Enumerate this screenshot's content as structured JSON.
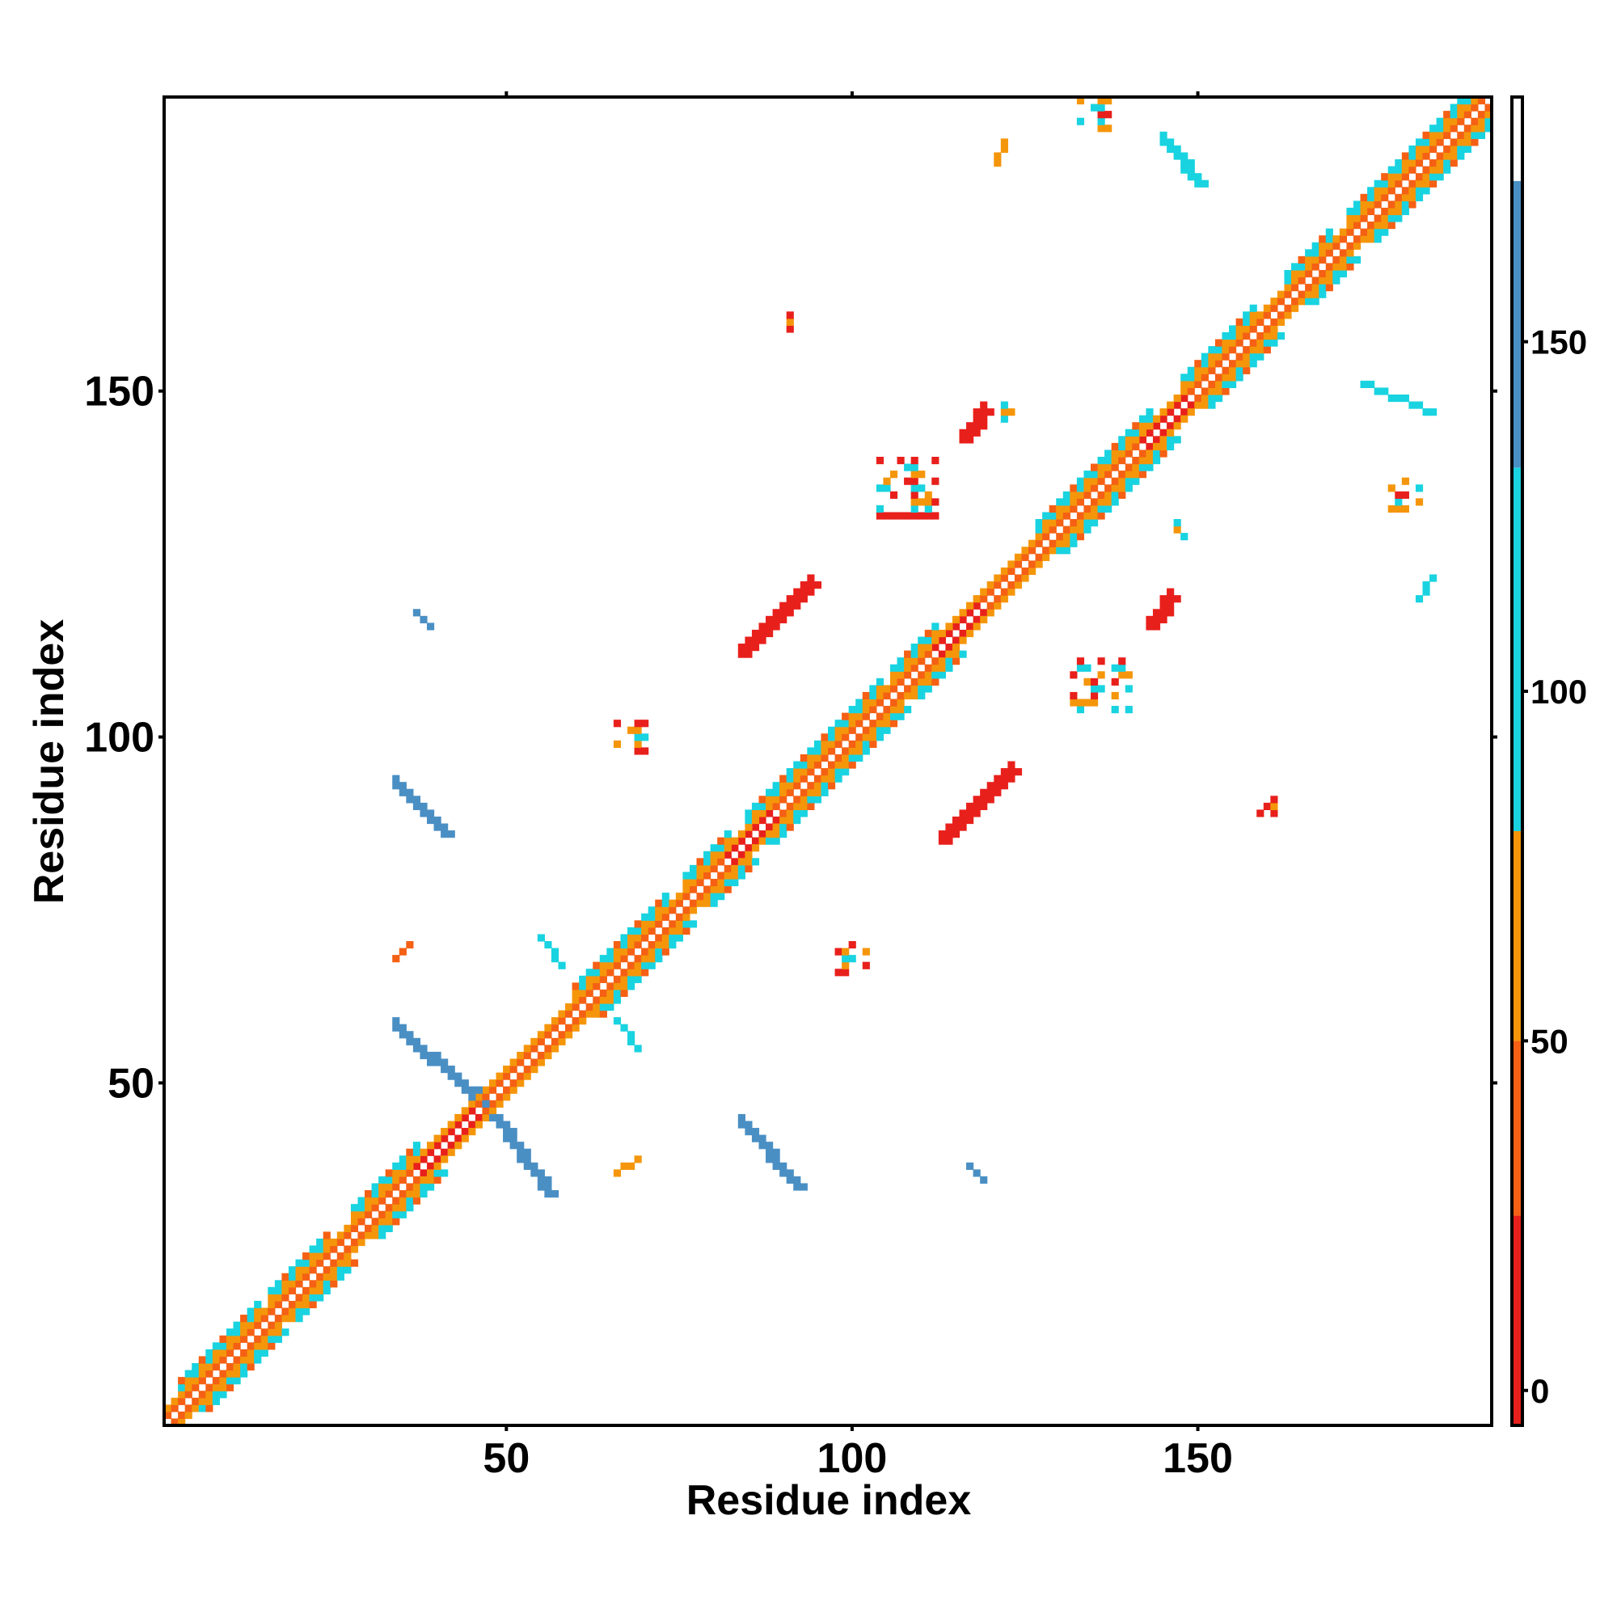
{
  "chart_data": {
    "type": "heatmap",
    "title": "",
    "xlabel": "Residue index",
    "ylabel": "Residue index",
    "xlim": [
      0.5,
      192.5
    ],
    "ylim": [
      0.5,
      192.5
    ],
    "x_ticks": [
      50,
      100,
      150
    ],
    "x_tick_labels": [
      "50",
      "100",
      "150"
    ],
    "y_ticks": [
      50,
      100,
      150
    ],
    "y_tick_labels": [
      "50",
      "100",
      "150"
    ],
    "colorbar": {
      "range": [
        -5,
        185
      ],
      "ticks": [
        0,
        50,
        100,
        150
      ],
      "tick_labels": [
        "0",
        "50",
        "100",
        "150"
      ],
      "bands": [
        {
          "from": -5,
          "to": 25,
          "color": "#e8201c"
        },
        {
          "from": 25,
          "to": 50,
          "color": "#f56014"
        },
        {
          "from": 50,
          "to": 80,
          "color": "#f5960a"
        },
        {
          "from": 80,
          "to": 132,
          "color": "#19d3e0"
        },
        {
          "from": 132,
          "to": 173,
          "color": "#4a8fc4"
        },
        {
          "from": 173,
          "to": 185,
          "color": "#ffffff"
        }
      ]
    },
    "colors": {
      "red": "#e8201c",
      "orange_red": "#f56014",
      "orange": "#f5960a",
      "cyan": "#19d3e0",
      "steel_blue": "#4a8fc4"
    },
    "diagonal_pattern": [
      {
        "offset": 1,
        "level": "orange_red"
      },
      {
        "offset": 2,
        "level": "orange"
      },
      {
        "offset": 3,
        "level": "cyan"
      },
      {
        "offset": 4,
        "level": "cyan"
      }
    ],
    "helix_segments": [
      {
        "start": 3,
        "end": 14
      },
      {
        "start": 16,
        "end": 24
      },
      {
        "start": 28,
        "end": 37
      },
      {
        "start": 60,
        "end": 73
      },
      {
        "start": 76,
        "end": 82
      },
      {
        "start": 85,
        "end": 104
      },
      {
        "start": 106,
        "end": 112
      },
      {
        "start": 127,
        "end": 143
      },
      {
        "start": 148,
        "end": 158
      },
      {
        "start": 163,
        "end": 169
      },
      {
        "start": 172,
        "end": 192
      }
    ],
    "red_diagonal_segments": [
      {
        "start": 37,
        "end": 45
      },
      {
        "start": 82,
        "end": 88
      },
      {
        "start": 112,
        "end": 118
      },
      {
        "start": 142,
        "end": 148
      }
    ],
    "contact_segments": [
      {
        "from": [
          34,
          58
        ],
        "to": [
          45,
          48
        ],
        "level": "steel_blue",
        "width": 2
      },
      {
        "from": [
          46,
          48
        ],
        "to": [
          56,
          34
        ],
        "level": "steel_blue",
        "width": 2
      },
      {
        "from": [
          84,
          44
        ],
        "to": [
          92,
          35
        ],
        "level": "steel_blue",
        "width": 2
      },
      {
        "from": [
          34,
          93
        ],
        "to": [
          41,
          86
        ],
        "level": "steel_blue",
        "width": 2
      },
      {
        "from": [
          55,
          71
        ],
        "to": [
          58,
          67
        ],
        "level": "cyan",
        "width": 1
      },
      {
        "from": [
          66,
          59
        ],
        "to": [
          69,
          55
        ],
        "level": "cyan",
        "width": 1
      },
      {
        "from": [
          113,
          85
        ],
        "to": [
          123,
          95
        ],
        "level": "red",
        "width": 2
      },
      {
        "from": [
          84,
          112
        ],
        "to": [
          94,
          122
        ],
        "level": "red",
        "width": 2
      },
      {
        "from": [
          116,
          143
        ],
        "to": [
          119,
          147
        ],
        "level": "red",
        "width": 2
      },
      {
        "from": [
          143,
          116
        ],
        "to": [
          146,
          120
        ],
        "level": "red",
        "width": 2
      },
      {
        "from": [
          34,
          68
        ],
        "to": [
          36,
          70
        ],
        "level": "orange_red",
        "width": 1
      },
      {
        "from": [
          66,
          37
        ],
        "to": [
          69,
          39
        ],
        "level": "orange",
        "width": 1
      },
      {
        "from": [
          119,
          36
        ],
        "to": [
          117,
          38
        ],
        "level": "steel_blue",
        "width": 1
      },
      {
        "from": [
          37,
          118
        ],
        "to": [
          39,
          116
        ],
        "level": "steel_blue",
        "width": 1
      },
      {
        "from": [
          121,
          183
        ],
        "to": [
          122,
          186
        ],
        "level": "orange",
        "width": 1
      },
      {
        "from": [
          145,
          186
        ],
        "to": [
          150,
          180
        ],
        "level": "cyan",
        "width": 2
      },
      {
        "from": [
          174,
          151
        ],
        "to": [
          184,
          147
        ],
        "level": "cyan",
        "width": 1
      },
      {
        "from": [
          182,
          120
        ],
        "to": [
          184,
          123
        ],
        "level": "cyan",
        "width": 1
      }
    ],
    "contact_patches": [
      {
        "center": [
          108,
          136
        ],
        "size": 9,
        "levels": [
          "cyan",
          "orange",
          "red"
        ]
      },
      {
        "center": [
          136,
          107
        ],
        "size": 9,
        "levels": [
          "cyan",
          "orange",
          "red"
        ]
      },
      {
        "center": [
          68,
          100
        ],
        "size": 5,
        "levels": [
          "cyan",
          "red",
          "orange"
        ]
      },
      {
        "center": [
          100,
          68
        ],
        "size": 5,
        "levels": [
          "cyan",
          "red",
          "orange"
        ]
      },
      {
        "center": [
          180,
          135
        ],
        "size": 4,
        "levels": [
          "red",
          "orange",
          "cyan"
        ]
      },
      {
        "center": [
          135,
          190
        ],
        "size": 4,
        "levels": [
          "red",
          "orange",
          "cyan"
        ]
      },
      {
        "center": [
          123,
          147
        ],
        "size": 3,
        "levels": [
          "orange",
          "red",
          "cyan"
        ]
      },
      {
        "center": [
          148,
          130
        ],
        "size": 3,
        "levels": [
          "orange",
          "red",
          "cyan"
        ]
      },
      {
        "center": [
          160,
          90
        ],
        "size": 2,
        "levels": [
          "red",
          "orange"
        ]
      },
      {
        "center": [
          90,
          160
        ],
        "size": 2,
        "levels": [
          "red",
          "orange"
        ]
      }
    ]
  }
}
